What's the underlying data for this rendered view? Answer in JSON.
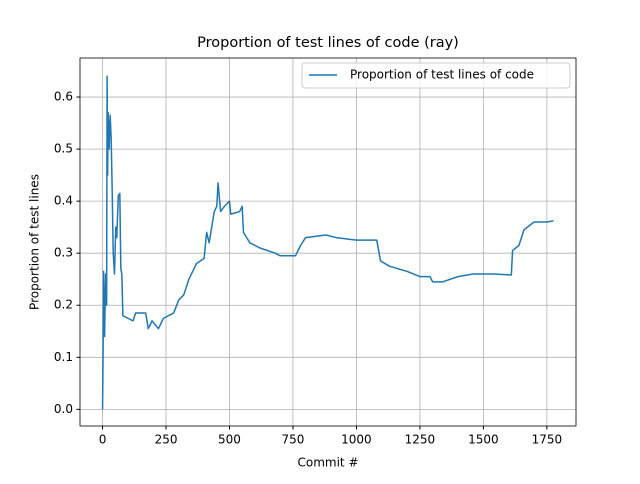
{
  "chart_data": {
    "type": "line",
    "title": "Proportion of test lines of code (ray)",
    "x_label": "Commit #",
    "y_label": "Proportion of test lines",
    "x": [
      0,
      2,
      4,
      8,
      12,
      16,
      18,
      20,
      22,
      26,
      30,
      34,
      38,
      42,
      47,
      52,
      56,
      62,
      68,
      72,
      76,
      80,
      100,
      120,
      130,
      170,
      180,
      195,
      220,
      240,
      280,
      300,
      320,
      340,
      370,
      400,
      410,
      420,
      440,
      450,
      455,
      465,
      480,
      500,
      505,
      540,
      550,
      555,
      580,
      620,
      680,
      700,
      760,
      780,
      800,
      880,
      920,
      1000,
      1080,
      1095,
      1130,
      1200,
      1250,
      1290,
      1300,
      1340,
      1400,
      1460,
      1500,
      1540,
      1610,
      1615,
      1640,
      1660,
      1700,
      1750,
      1776
    ],
    "series": [
      {
        "name": "Proportion of test lines of code",
        "color": "#1f77b4",
        "values": [
          0.0,
          0.1,
          0.265,
          0.14,
          0.26,
          0.2,
          0.64,
          0.45,
          0.57,
          0.5,
          0.565,
          0.52,
          0.42,
          0.3,
          0.26,
          0.35,
          0.33,
          0.41,
          0.415,
          0.27,
          0.26,
          0.18,
          0.175,
          0.17,
          0.185,
          0.185,
          0.155,
          0.17,
          0.155,
          0.175,
          0.185,
          0.21,
          0.22,
          0.25,
          0.28,
          0.29,
          0.34,
          0.32,
          0.38,
          0.39,
          0.435,
          0.38,
          0.39,
          0.4,
          0.375,
          0.38,
          0.39,
          0.34,
          0.32,
          0.31,
          0.3,
          0.295,
          0.295,
          0.315,
          0.33,
          0.335,
          0.33,
          0.325,
          0.325,
          0.285,
          0.275,
          0.265,
          0.255,
          0.255,
          0.245,
          0.245,
          0.255,
          0.26,
          0.26,
          0.26,
          0.258,
          0.305,
          0.315,
          0.345,
          0.36,
          0.36,
          0.362
        ]
      }
    ],
    "xlim": [
      -88.8,
      1864.8
    ],
    "ylim": [
      -0.032,
      0.675
    ],
    "xticks": [
      0,
      250,
      500,
      750,
      1000,
      1250,
      1500,
      1750
    ],
    "yticks": [
      {
        "value": 0,
        "label": "0.0"
      },
      0.1,
      0.2,
      0.3,
      0.4,
      0.5,
      0.6
    ],
    "grid": true,
    "legend": "upper right"
  }
}
